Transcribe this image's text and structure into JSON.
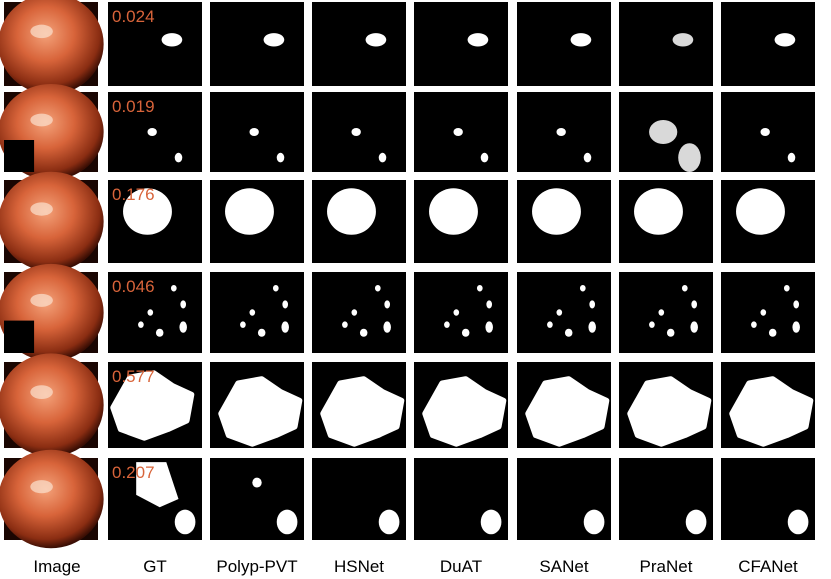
{
  "columns": [
    "Image",
    "GT",
    "Polyp-PVT",
    "HSNet",
    "DuAT",
    "SANet",
    "PraNet",
    "CFANet"
  ],
  "rows": [
    {
      "ratio": "0.024"
    },
    {
      "ratio": "0.019"
    },
    {
      "ratio": "0.176"
    },
    {
      "ratio": "0.046"
    },
    {
      "ratio": "0.577"
    },
    {
      "ratio": "0.207"
    }
  ]
}
